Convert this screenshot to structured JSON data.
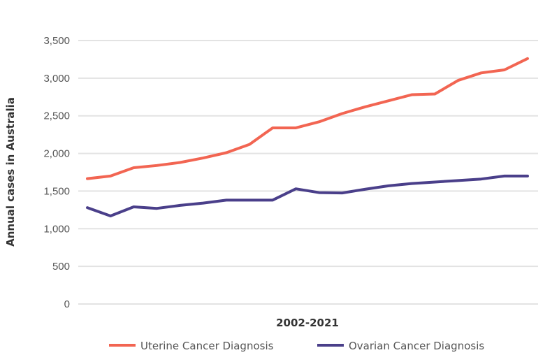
{
  "chart_data": {
    "type": "line",
    "title": "",
    "xlabel": "2002-2021",
    "ylabel": "Annual cases in Australia",
    "ylim": [
      0,
      3500
    ],
    "yticks": [
      0,
      500,
      1000,
      1500,
      2000,
      2500,
      3000,
      3500
    ],
    "ytick_labels": [
      "0",
      "500",
      "1,000",
      "1,500",
      "2,000",
      "2,500",
      "3,000",
      "3,500"
    ],
    "grid": "horizontal",
    "legend_position": "bottom",
    "x": [
      2002,
      2003,
      2004,
      2005,
      2006,
      2007,
      2008,
      2009,
      2010,
      2011,
      2012,
      2013,
      2014,
      2015,
      2016,
      2017,
      2018,
      2019,
      2020,
      2021
    ],
    "series": [
      {
        "name": "Uterine Cancer Diagnosis",
        "color": "#f26552",
        "values": [
          1665,
          1700,
          1810,
          1840,
          1880,
          1940,
          2010,
          2120,
          2340,
          2340,
          2420,
          2530,
          2620,
          2700,
          2780,
          2790,
          2970,
          3070,
          3110,
          3260
        ]
      },
      {
        "name": "Ovarian Cancer Diagnosis",
        "color": "#4a3f8a",
        "values": [
          1280,
          1170,
          1290,
          1270,
          1310,
          1340,
          1380,
          1380,
          1380,
          1530,
          1480,
          1475,
          1525,
          1570,
          1600,
          1620,
          1640,
          1660,
          1700,
          1700
        ]
      }
    ]
  }
}
